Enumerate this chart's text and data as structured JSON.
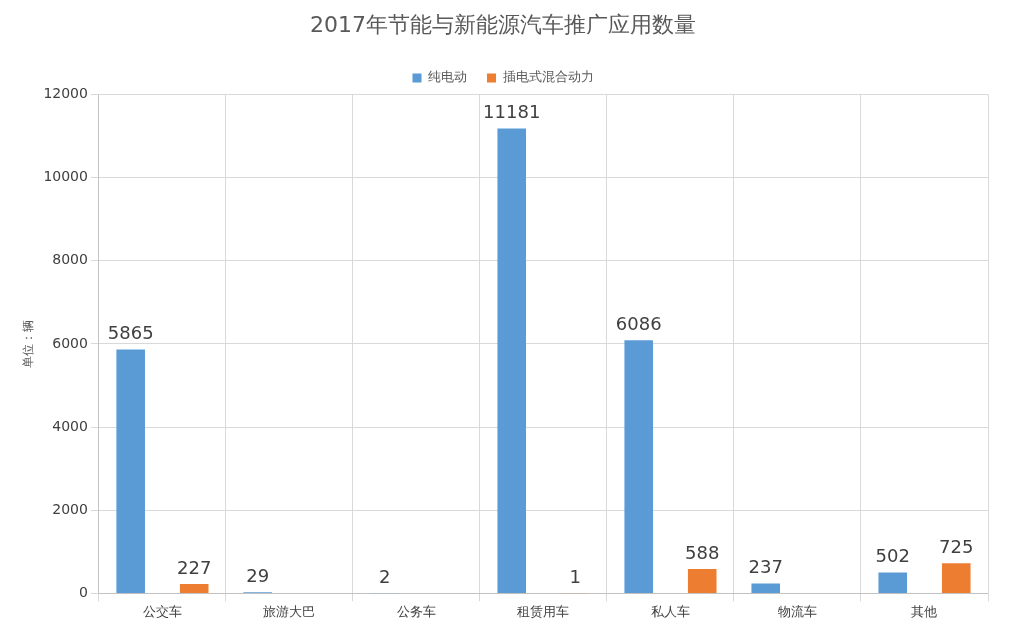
{
  "chart_data": {
    "type": "bar",
    "title": "2017年节能与新能源汽车推广应用数量",
    "ylabel": "单位：辆",
    "categories": [
      "公交车",
      "旅游大巴",
      "公务车",
      "租赁用车",
      "私人车",
      "物流车",
      "其他"
    ],
    "series": [
      {
        "name": "纯电动",
        "color": "#5b9bd5",
        "values": [
          5865,
          29,
          2,
          11181,
          6086,
          237,
          502
        ]
      },
      {
        "name": "插电式混合动力",
        "color": "#ed7d31",
        "values": [
          227,
          null,
          null,
          1,
          588,
          null,
          725
        ]
      }
    ],
    "ylim": [
      0,
      12000
    ],
    "yticks": [
      0,
      2000,
      4000,
      6000,
      8000,
      10000,
      12000
    ],
    "grid": true,
    "legend": "top",
    "data_labels": true
  }
}
